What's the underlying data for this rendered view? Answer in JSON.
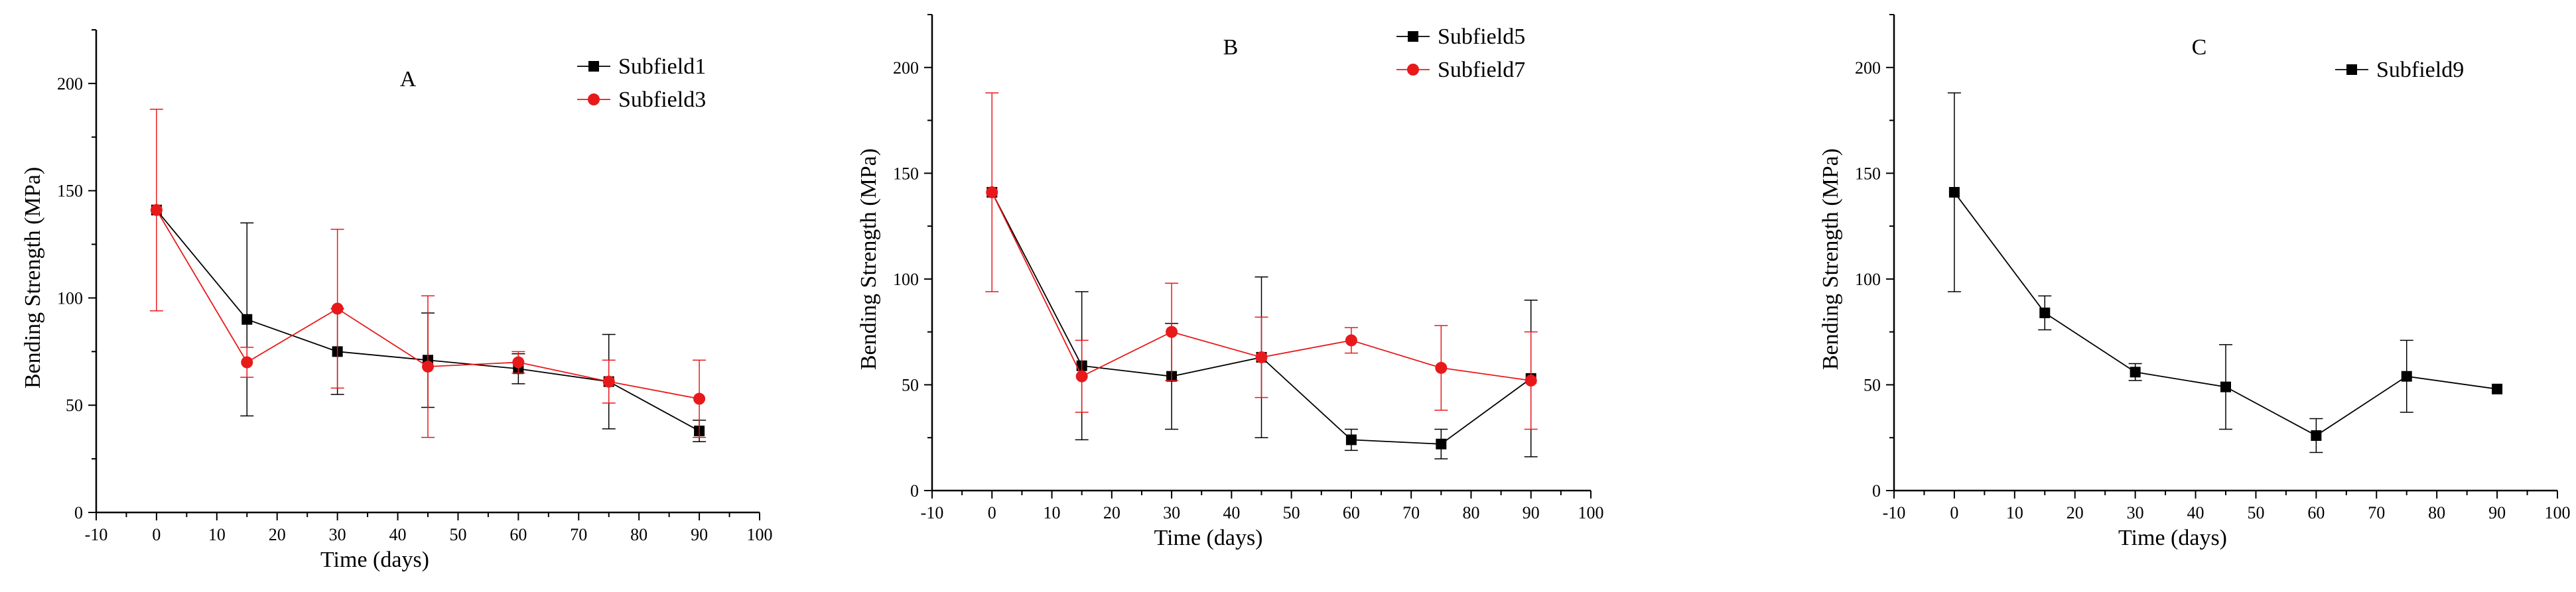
{
  "chart_data": [
    {
      "type": "line",
      "title": "A",
      "xlabel": "Time (days)",
      "ylabel": "Bending Strength (MPa)",
      "xlim": [
        -10,
        100
      ],
      "ylim": [
        0,
        225
      ],
      "xticks": [
        -10,
        0,
        10,
        20,
        30,
        40,
        50,
        60,
        70,
        80,
        90,
        100
      ],
      "yticks": [
        0,
        50,
        100,
        150,
        200
      ],
      "grid": false,
      "legend_position": "top-right",
      "series": [
        {
          "name": "Subfield1",
          "color": "#000000",
          "marker": "square",
          "x": [
            0,
            15,
            30,
            45,
            60,
            75,
            90
          ],
          "y": [
            141,
            90,
            75,
            71,
            67,
            61,
            38
          ],
          "err": [
            0,
            45,
            20,
            22,
            7,
            22,
            5
          ]
        },
        {
          "name": "Subfield3",
          "color": "#e8191b",
          "marker": "circle",
          "x": [
            0,
            15,
            30,
            45,
            60,
            75,
            90
          ],
          "y": [
            141,
            70,
            95,
            68,
            70,
            61,
            53
          ],
          "err": [
            47,
            7,
            37,
            33,
            5,
            10,
            18
          ]
        }
      ]
    },
    {
      "type": "line",
      "title": "B",
      "xlabel": "Time (days)",
      "ylabel": "Bending Strength (MPa)",
      "xlim": [
        -10,
        100
      ],
      "ylim": [
        0,
        225
      ],
      "xticks": [
        -10,
        0,
        10,
        20,
        30,
        40,
        50,
        60,
        70,
        80,
        90,
        100
      ],
      "yticks": [
        0,
        50,
        100,
        150,
        200
      ],
      "grid": false,
      "legend_position": "top-right",
      "series": [
        {
          "name": "Subfield5",
          "color": "#000000",
          "marker": "square",
          "x": [
            0,
            15,
            30,
            45,
            60,
            75,
            90
          ],
          "y": [
            141,
            59,
            54,
            63,
            24,
            22,
            53
          ],
          "err": [
            0,
            35,
            25,
            38,
            5,
            7,
            37
          ]
        },
        {
          "name": "Subfield7",
          "color": "#e8191b",
          "marker": "circle",
          "x": [
            0,
            15,
            30,
            45,
            60,
            75,
            90
          ],
          "y": [
            141,
            54,
            75,
            63,
            71,
            58,
            52
          ],
          "err": [
            47,
            17,
            23,
            19,
            6,
            20,
            23
          ]
        }
      ]
    },
    {
      "type": "line",
      "title": "C",
      "xlabel": "Time (days)",
      "ylabel": "Bending Strength (MPa)",
      "xlim": [
        -10,
        100
      ],
      "ylim": [
        0,
        225
      ],
      "xticks": [
        -10,
        0,
        10,
        20,
        30,
        40,
        50,
        60,
        70,
        80,
        90,
        100
      ],
      "yticks": [
        0,
        50,
        100,
        150,
        200
      ],
      "grid": false,
      "legend_position": "top-right",
      "series": [
        {
          "name": "Subfield9",
          "color": "#000000",
          "marker": "square",
          "x": [
            0,
            15,
            30,
            45,
            60,
            75,
            90
          ],
          "y": [
            141,
            84,
            56,
            49,
            26,
            54,
            48
          ],
          "err": [
            47,
            8,
            4,
            20,
            8,
            17,
            0
          ]
        }
      ]
    }
  ]
}
